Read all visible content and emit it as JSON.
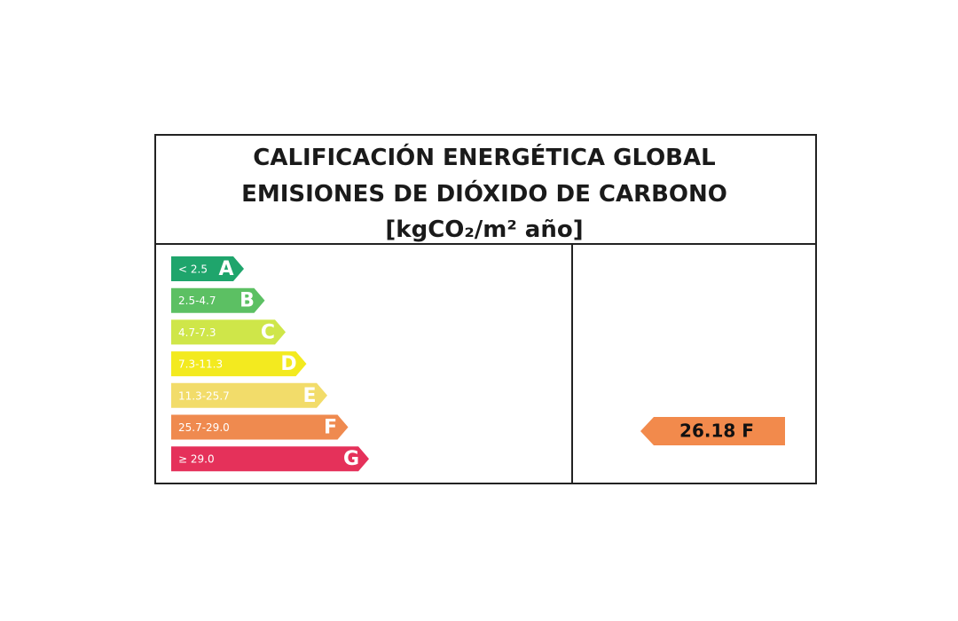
{
  "header": {
    "lines": [
      "CALIFICACIÓN ENERGÉTICA GLOBAL",
      "EMISIONES DE DIÓXIDO DE CARBONO",
      "[kgCO₂/m² año]"
    ]
  },
  "scale": [
    {
      "range": "< 2.5",
      "letter": "A",
      "color": "#1fa56c"
    },
    {
      "range": "2.5-4.7",
      "letter": "B",
      "color": "#5cc063"
    },
    {
      "range": "4.7-7.3",
      "letter": "C",
      "color": "#cfe649"
    },
    {
      "range": "7.3-11.3",
      "letter": "D",
      "color": "#f3ea1f"
    },
    {
      "range": "11.3-25.7",
      "letter": "E",
      "color": "#f2dc6a"
    },
    {
      "range": "25.7-29.0",
      "letter": "F",
      "color": "#ef8a4f"
    },
    {
      "range": "≥ 29.0",
      "letter": "G",
      "color": "#e5315a"
    }
  ],
  "rating": {
    "label": "26.18 F",
    "color": "#f28a4c"
  }
}
